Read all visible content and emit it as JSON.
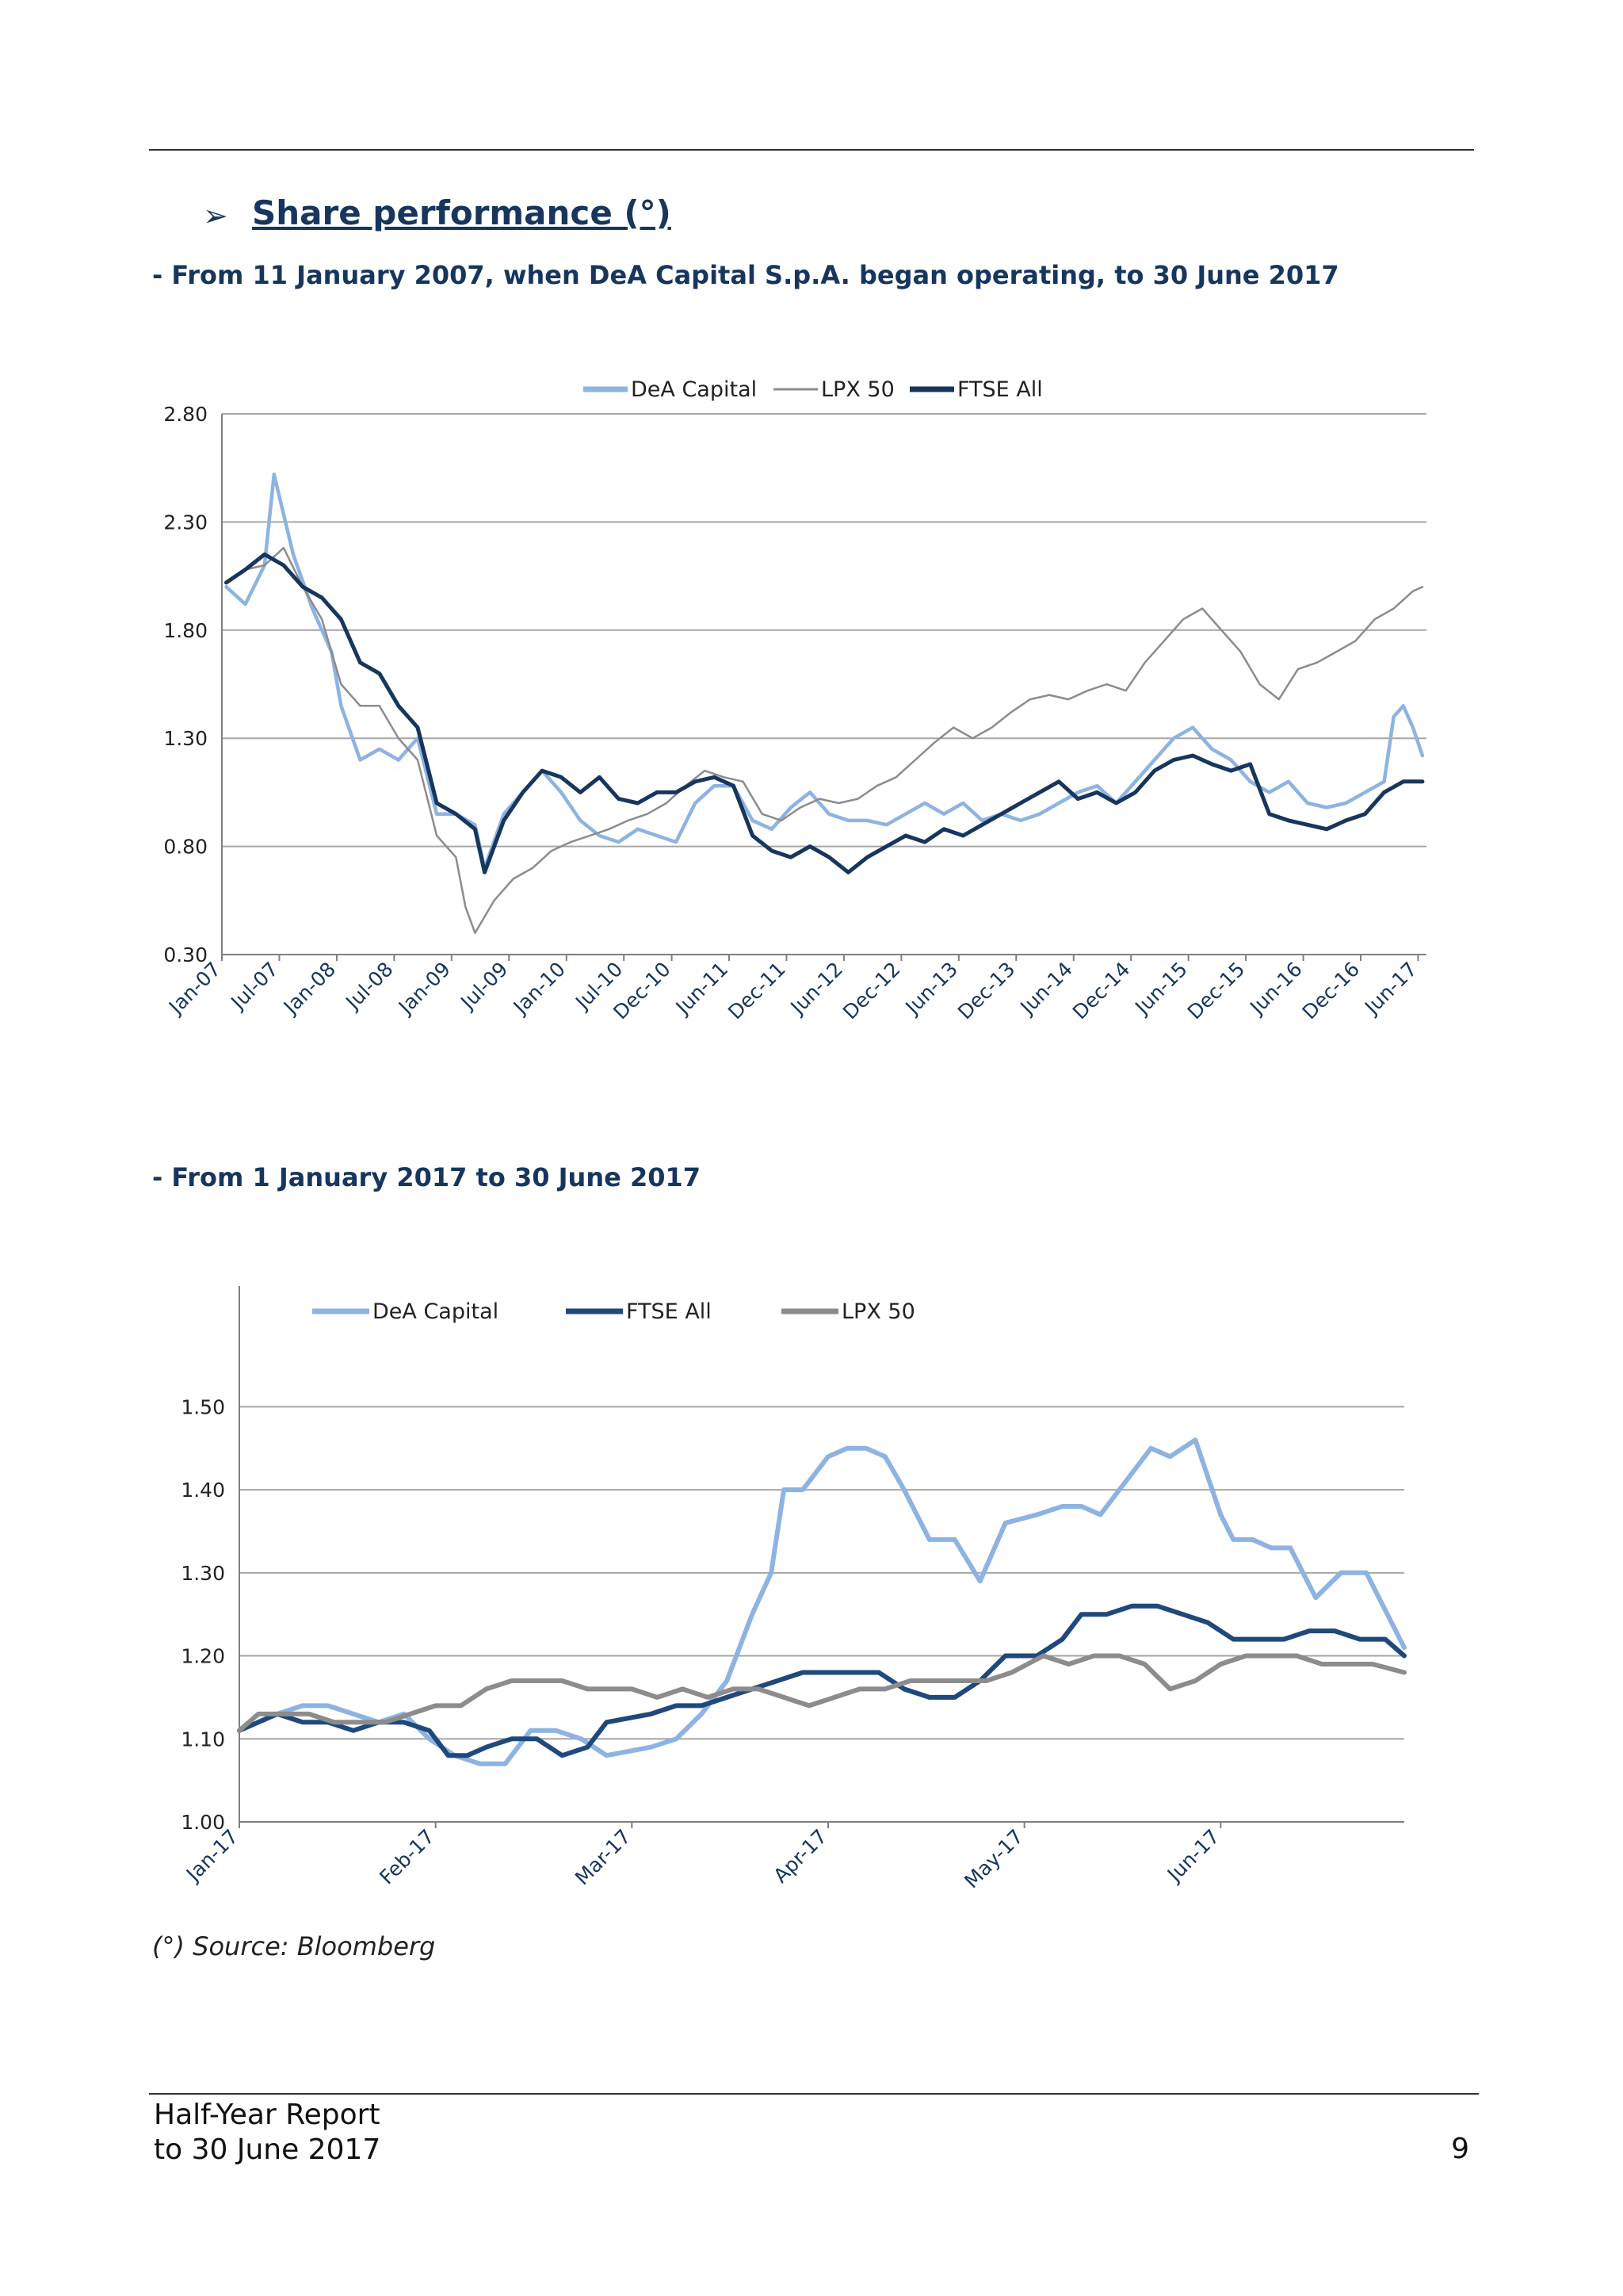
{
  "heading": {
    "bullet": "➢",
    "title": "Share performance (°)"
  },
  "subtitle1": "- From 11 January 2007, when DeA Capital S.p.A. began operating, to 30 June 2017",
  "subtitle2": "- From 1 January 2017 to 30 June 2017",
  "source_note": "(°) Source: Bloomberg",
  "footer": {
    "line1": "Half-Year Report",
    "line2": "to 30 June 2017",
    "page": "9"
  },
  "colors": {
    "dea": "#8db3e2",
    "lpx": "#8c8c8c",
    "ftse": "#17365d",
    "ftse2": "#1f497d",
    "grid": "#a6a6a6",
    "axis": "#7f7f7f"
  },
  "chart_data": [
    {
      "type": "line",
      "title": "",
      "legend": {
        "placement": "top",
        "entries": [
          "DeA Capital",
          "LPX 50",
          "FTSE  All"
        ]
      },
      "grid": true,
      "ylim": [
        0.3,
        2.8
      ],
      "yticks": [
        "2.80",
        "2.30",
        "1.80",
        "1.30",
        "0.80",
        "0.30"
      ],
      "xlim": [
        "2007-01",
        "2017-06"
      ],
      "xticks": [
        "Jan-07",
        "Jul-07",
        "Jan-08",
        "Jul-08",
        "Jan-09",
        "Jul-09",
        "Jan-10",
        "Jul-10",
        "Dec-10",
        "Jun-11",
        "Dec-11",
        "Jun-12",
        "Dec-12",
        "Jun-13",
        "Dec-13",
        "Jun-14",
        "Dec-14",
        "Jun-15",
        "Dec-15",
        "Jun-16",
        "Dec-16",
        "Jun-17"
      ],
      "series": [
        {
          "name": "DeA Capital",
          "x": [
            "2007-01",
            "2007-03",
            "2007-05",
            "2007-06",
            "2007-08",
            "2007-10",
            "2007-12",
            "2008-01",
            "2008-03",
            "2008-05",
            "2008-07",
            "2008-09",
            "2008-11",
            "2009-01",
            "2009-03",
            "2009-04",
            "2009-06",
            "2009-08",
            "2009-10",
            "2009-12",
            "2010-02",
            "2010-04",
            "2010-06",
            "2010-08",
            "2010-10",
            "2010-12",
            "2011-02",
            "2011-04",
            "2011-06",
            "2011-08",
            "2011-10",
            "2011-12",
            "2012-02",
            "2012-04",
            "2012-06",
            "2012-08",
            "2012-10",
            "2012-12",
            "2013-02",
            "2013-04",
            "2013-06",
            "2013-08",
            "2013-10",
            "2013-12",
            "2014-02",
            "2014-04",
            "2014-06",
            "2014-08",
            "2014-10",
            "2014-12",
            "2015-02",
            "2015-04",
            "2015-06",
            "2015-08",
            "2015-10",
            "2015-12",
            "2016-02",
            "2016-04",
            "2016-06",
            "2016-08",
            "2016-10",
            "2016-12",
            "2017-02",
            "2017-03",
            "2017-04",
            "2017-05",
            "2017-06"
          ],
          "values": [
            2.0,
            1.92,
            2.1,
            2.52,
            2.15,
            1.9,
            1.7,
            1.45,
            1.2,
            1.25,
            1.2,
            1.3,
            0.95,
            0.95,
            0.9,
            0.7,
            0.95,
            1.05,
            1.15,
            1.05,
            0.92,
            0.85,
            0.82,
            0.88,
            0.85,
            0.82,
            1.0,
            1.08,
            1.08,
            0.92,
            0.88,
            0.98,
            1.05,
            0.95,
            0.92,
            0.92,
            0.9,
            0.95,
            1.0,
            0.95,
            1.0,
            0.92,
            0.95,
            0.92,
            0.95,
            1.0,
            1.05,
            1.08,
            1.0,
            1.1,
            1.2,
            1.3,
            1.35,
            1.25,
            1.2,
            1.1,
            1.05,
            1.1,
            1.0,
            0.98,
            1.0,
            1.05,
            1.1,
            1.4,
            1.45,
            1.35,
            1.22
          ]
        },
        {
          "name": "LPX 50",
          "x": [
            "2007-01",
            "2007-03",
            "2007-05",
            "2007-07",
            "2007-09",
            "2007-11",
            "2008-01",
            "2008-03",
            "2008-05",
            "2008-07",
            "2008-09",
            "2008-11",
            "2009-01",
            "2009-02",
            "2009-03",
            "2009-05",
            "2009-07",
            "2009-09",
            "2009-11",
            "2010-01",
            "2010-03",
            "2010-05",
            "2010-07",
            "2010-09",
            "2010-11",
            "2011-01",
            "2011-03",
            "2011-05",
            "2011-07",
            "2011-09",
            "2011-11",
            "2012-01",
            "2012-03",
            "2012-05",
            "2012-07",
            "2012-09",
            "2012-11",
            "2013-01",
            "2013-03",
            "2013-05",
            "2013-07",
            "2013-09",
            "2013-11",
            "2014-01",
            "2014-03",
            "2014-05",
            "2014-07",
            "2014-09",
            "2014-11",
            "2015-01",
            "2015-03",
            "2015-05",
            "2015-07",
            "2015-09",
            "2015-11",
            "2016-01",
            "2016-03",
            "2016-05",
            "2016-07",
            "2016-09",
            "2016-11",
            "2017-01",
            "2017-03",
            "2017-05",
            "2017-06"
          ],
          "values": [
            2.02,
            2.08,
            2.1,
            2.18,
            2.0,
            1.85,
            1.55,
            1.45,
            1.45,
            1.3,
            1.2,
            0.85,
            0.75,
            0.52,
            0.4,
            0.55,
            0.65,
            0.7,
            0.78,
            0.82,
            0.85,
            0.88,
            0.92,
            0.95,
            1.0,
            1.08,
            1.15,
            1.12,
            1.1,
            0.95,
            0.92,
            0.98,
            1.02,
            1.0,
            1.02,
            1.08,
            1.12,
            1.2,
            1.28,
            1.35,
            1.3,
            1.35,
            1.42,
            1.48,
            1.5,
            1.48,
            1.52,
            1.55,
            1.52,
            1.65,
            1.75,
            1.85,
            1.9,
            1.8,
            1.7,
            1.55,
            1.48,
            1.62,
            1.65,
            1.7,
            1.75,
            1.85,
            1.9,
            1.98,
            2.0
          ]
        },
        {
          "name": "FTSE  All",
          "x": [
            "2007-01",
            "2007-03",
            "2007-05",
            "2007-07",
            "2007-09",
            "2007-11",
            "2008-01",
            "2008-03",
            "2008-05",
            "2008-07",
            "2008-09",
            "2008-11",
            "2009-01",
            "2009-03",
            "2009-04",
            "2009-06",
            "2009-08",
            "2009-10",
            "2009-12",
            "2010-02",
            "2010-04",
            "2010-06",
            "2010-08",
            "2010-10",
            "2010-12",
            "2011-02",
            "2011-04",
            "2011-06",
            "2011-08",
            "2011-10",
            "2011-12",
            "2012-02",
            "2012-04",
            "2012-06",
            "2012-08",
            "2012-10",
            "2012-12",
            "2013-02",
            "2013-04",
            "2013-06",
            "2013-08",
            "2013-10",
            "2013-12",
            "2014-02",
            "2014-04",
            "2014-06",
            "2014-08",
            "2014-10",
            "2014-12",
            "2015-02",
            "2015-04",
            "2015-06",
            "2015-08",
            "2015-10",
            "2015-12",
            "2016-02",
            "2016-04",
            "2016-06",
            "2016-08",
            "2016-10",
            "2016-12",
            "2017-02",
            "2017-04",
            "2017-06"
          ],
          "values": [
            2.02,
            2.08,
            2.15,
            2.1,
            2.0,
            1.95,
            1.85,
            1.65,
            1.6,
            1.45,
            1.35,
            1.0,
            0.95,
            0.88,
            0.68,
            0.92,
            1.05,
            1.15,
            1.12,
            1.05,
            1.12,
            1.02,
            1.0,
            1.05,
            1.05,
            1.1,
            1.12,
            1.08,
            0.85,
            0.78,
            0.75,
            0.8,
            0.75,
            0.68,
            0.75,
            0.8,
            0.85,
            0.82,
            0.88,
            0.85,
            0.9,
            0.95,
            1.0,
            1.05,
            1.1,
            1.02,
            1.05,
            1.0,
            1.05,
            1.15,
            1.2,
            1.22,
            1.18,
            1.15,
            1.18,
            0.95,
            0.92,
            0.9,
            0.88,
            0.92,
            0.95,
            1.05,
            1.1,
            1.1
          ]
        }
      ]
    },
    {
      "type": "line",
      "title": "",
      "legend": {
        "placement": "top",
        "entries": [
          "DeA Capital",
          "FTSE All",
          "LPX 50"
        ]
      },
      "grid": true,
      "ylim": [
        1.0,
        1.55
      ],
      "yticks": [
        "1.50",
        "1.40",
        "1.30",
        "1.20",
        "1.10",
        "1.00"
      ],
      "xlim": [
        "2017-01-01",
        "2017-06-30"
      ],
      "xticks": [
        "Jan-17",
        "Feb-17",
        "Mar-17",
        "Apr-17",
        "May-17",
        "Jun-17"
      ],
      "series": [
        {
          "name": "DeA Capital",
          "x": [
            "2017-01-01",
            "2017-01-04",
            "2017-01-07",
            "2017-01-11",
            "2017-01-15",
            "2017-01-19",
            "2017-01-23",
            "2017-01-27",
            "2017-01-31",
            "2017-02-04",
            "2017-02-08",
            "2017-02-12",
            "2017-02-16",
            "2017-02-20",
            "2017-02-24",
            "2017-02-28",
            "2017-03-04",
            "2017-03-08",
            "2017-03-12",
            "2017-03-16",
            "2017-03-20",
            "2017-03-23",
            "2017-03-25",
            "2017-03-28",
            "2017-04-01",
            "2017-04-04",
            "2017-04-07",
            "2017-04-10",
            "2017-04-13",
            "2017-04-17",
            "2017-04-21",
            "2017-04-25",
            "2017-04-29",
            "2017-05-03",
            "2017-05-07",
            "2017-05-10",
            "2017-05-13",
            "2017-05-16",
            "2017-05-18",
            "2017-05-21",
            "2017-05-24",
            "2017-05-28",
            "2017-06-01",
            "2017-06-03",
            "2017-06-06",
            "2017-06-09",
            "2017-06-12",
            "2017-06-16",
            "2017-06-20",
            "2017-06-24",
            "2017-06-28",
            "2017-06-30"
          ],
          "values": [
            1.11,
            1.12,
            1.13,
            1.14,
            1.14,
            1.13,
            1.12,
            1.13,
            1.1,
            1.08,
            1.07,
            1.07,
            1.11,
            1.11,
            1.1,
            1.08,
            1.09,
            1.1,
            1.13,
            1.17,
            1.25,
            1.3,
            1.4,
            1.4,
            1.44,
            1.45,
            1.45,
            1.44,
            1.4,
            1.34,
            1.34,
            1.29,
            1.36,
            1.37,
            1.38,
            1.38,
            1.37,
            1.4,
            1.42,
            1.45,
            1.44,
            1.46,
            1.37,
            1.34,
            1.34,
            1.33,
            1.33,
            1.27,
            1.3,
            1.3,
            1.24,
            1.21
          ]
        },
        {
          "name": "FTSE All",
          "x": [
            "2017-01-01",
            "2017-01-04",
            "2017-01-07",
            "2017-01-11",
            "2017-01-15",
            "2017-01-19",
            "2017-01-23",
            "2017-01-27",
            "2017-01-31",
            "2017-02-03",
            "2017-02-06",
            "2017-02-09",
            "2017-02-13",
            "2017-02-17",
            "2017-02-21",
            "2017-02-25",
            "2017-02-28",
            "2017-03-04",
            "2017-03-08",
            "2017-03-12",
            "2017-03-16",
            "2017-03-20",
            "2017-03-24",
            "2017-03-28",
            "2017-04-01",
            "2017-04-05",
            "2017-04-09",
            "2017-04-13",
            "2017-04-17",
            "2017-04-21",
            "2017-04-25",
            "2017-04-29",
            "2017-05-03",
            "2017-05-07",
            "2017-05-10",
            "2017-05-14",
            "2017-05-18",
            "2017-05-22",
            "2017-05-26",
            "2017-05-30",
            "2017-06-03",
            "2017-06-07",
            "2017-06-11",
            "2017-06-15",
            "2017-06-19",
            "2017-06-23",
            "2017-06-27",
            "2017-06-30"
          ],
          "values": [
            1.11,
            1.12,
            1.13,
            1.12,
            1.12,
            1.11,
            1.12,
            1.12,
            1.11,
            1.08,
            1.08,
            1.09,
            1.1,
            1.1,
            1.08,
            1.09,
            1.12,
            1.13,
            1.14,
            1.14,
            1.15,
            1.16,
            1.17,
            1.18,
            1.18,
            1.18,
            1.18,
            1.16,
            1.15,
            1.15,
            1.17,
            1.2,
            1.2,
            1.22,
            1.25,
            1.25,
            1.26,
            1.26,
            1.25,
            1.24,
            1.22,
            1.22,
            1.22,
            1.23,
            1.23,
            1.22,
            1.22,
            1.2
          ]
        },
        {
          "name": "LPX 50",
          "x": [
            "2017-01-01",
            "2017-01-04",
            "2017-01-08",
            "2017-01-12",
            "2017-01-16",
            "2017-01-20",
            "2017-01-24",
            "2017-01-28",
            "2017-02-01",
            "2017-02-05",
            "2017-02-09",
            "2017-02-13",
            "2017-02-17",
            "2017-02-21",
            "2017-02-25",
            "2017-03-01",
            "2017-03-05",
            "2017-03-09",
            "2017-03-13",
            "2017-03-17",
            "2017-03-21",
            "2017-03-25",
            "2017-03-29",
            "2017-04-02",
            "2017-04-06",
            "2017-04-10",
            "2017-04-14",
            "2017-04-18",
            "2017-04-22",
            "2017-04-26",
            "2017-04-30",
            "2017-05-04",
            "2017-05-08",
            "2017-05-12",
            "2017-05-16",
            "2017-05-20",
            "2017-05-24",
            "2017-05-28",
            "2017-06-01",
            "2017-06-05",
            "2017-06-09",
            "2017-06-13",
            "2017-06-17",
            "2017-06-21",
            "2017-06-25",
            "2017-06-30"
          ],
          "values": [
            1.11,
            1.13,
            1.13,
            1.13,
            1.12,
            1.12,
            1.12,
            1.13,
            1.14,
            1.14,
            1.16,
            1.17,
            1.17,
            1.17,
            1.16,
            1.16,
            1.15,
            1.16,
            1.15,
            1.16,
            1.16,
            1.15,
            1.14,
            1.15,
            1.16,
            1.16,
            1.17,
            1.17,
            1.17,
            1.17,
            1.18,
            1.2,
            1.19,
            1.2,
            1.2,
            1.19,
            1.16,
            1.17,
            1.19,
            1.2,
            1.2,
            1.2,
            1.19,
            1.19,
            1.19,
            1.18
          ]
        }
      ]
    }
  ]
}
